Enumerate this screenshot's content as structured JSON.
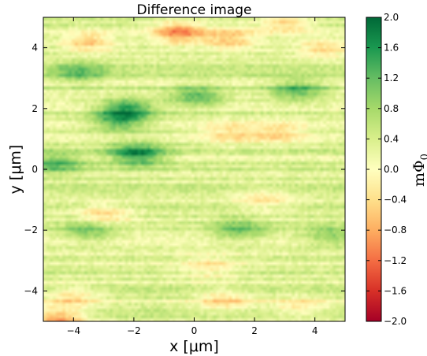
{
  "chart_data": {
    "type": "heatmap",
    "title": "Difference image",
    "xlabel": "x [μm]",
    "ylabel": "y [μm]",
    "xlim": [
      -5,
      5
    ],
    "ylim": [
      -5,
      5
    ],
    "xticks": [
      -4,
      -2,
      0,
      2,
      4
    ],
    "yticks": [
      -4,
      -2,
      0,
      2,
      4
    ],
    "xtick_labels": [
      "−4",
      "−2",
      "0",
      "2",
      "4"
    ],
    "ytick_labels": [
      "−4",
      "−2",
      "0",
      "2",
      "4"
    ],
    "colorbar": {
      "label": "mΦ",
      "label_subscript": "0",
      "range": [
        -2.0,
        2.0
      ],
      "ticks": [
        2.0,
        1.6,
        1.2,
        0.8,
        0.4,
        0.0,
        -0.4,
        -0.8,
        -1.2,
        -1.6,
        -2.0
      ],
      "tick_labels": [
        "2.0",
        "1.6",
        "1.2",
        "0.8",
        "0.4",
        "0.0",
        "−0.4",
        "−0.8",
        "−1.2",
        "−1.6",
        "−2.0"
      ],
      "colormap": "RdYlGn",
      "colors": [
        "#a50026",
        "#d73027",
        "#f46d43",
        "#fdae61",
        "#fee08b",
        "#ffffbf",
        "#d9ef8b",
        "#a6d96a",
        "#66bd63",
        "#1a9850",
        "#006837"
      ]
    },
    "grid": false,
    "features": [
      {
        "x": -0.5,
        "y": 4.5,
        "value": -1.4
      },
      {
        "x": 1.2,
        "y": 4.3,
        "value": -1.0
      },
      {
        "x": -3.5,
        "y": 4.2,
        "value": -0.9
      },
      {
        "x": 3.0,
        "y": 4.8,
        "value": -0.8
      },
      {
        "x": 4.3,
        "y": 4.0,
        "value": -0.7
      },
      {
        "x": -2.2,
        "y": 2.0,
        "value": 1.2
      },
      {
        "x": -1.9,
        "y": 0.5,
        "value": 1.4
      },
      {
        "x": -2.5,
        "y": 1.6,
        "value": 1.0
      },
      {
        "x": 0.1,
        "y": 2.4,
        "value": 1.0
      },
      {
        "x": 3.4,
        "y": 2.6,
        "value": 1.0
      },
      {
        "x": -4.6,
        "y": 0.2,
        "value": 0.9
      },
      {
        "x": -3.5,
        "y": -2.0,
        "value": 0.8
      },
      {
        "x": 1.5,
        "y": -2.0,
        "value": 0.8
      },
      {
        "x": 4.5,
        "y": -2.2,
        "value": 0.7
      },
      {
        "x": 1.2,
        "y": 1.2,
        "value": -0.7
      },
      {
        "x": 2.8,
        "y": 1.2,
        "value": -0.7
      },
      {
        "x": -3.0,
        "y": -1.5,
        "value": -0.8
      },
      {
        "x": 2.3,
        "y": -1.0,
        "value": -0.6
      },
      {
        "x": -4.0,
        "y": -4.2,
        "value": -0.7
      },
      {
        "x": 1.0,
        "y": -4.3,
        "value": -0.8
      },
      {
        "x": 3.5,
        "y": -4.5,
        "value": -0.6
      },
      {
        "x": -4.5,
        "y": -4.9,
        "value": -1.2
      },
      {
        "x": -3.8,
        "y": 3.2,
        "value": 0.8
      },
      {
        "x": 0.5,
        "y": -3.2,
        "value": -0.6
      }
    ]
  }
}
